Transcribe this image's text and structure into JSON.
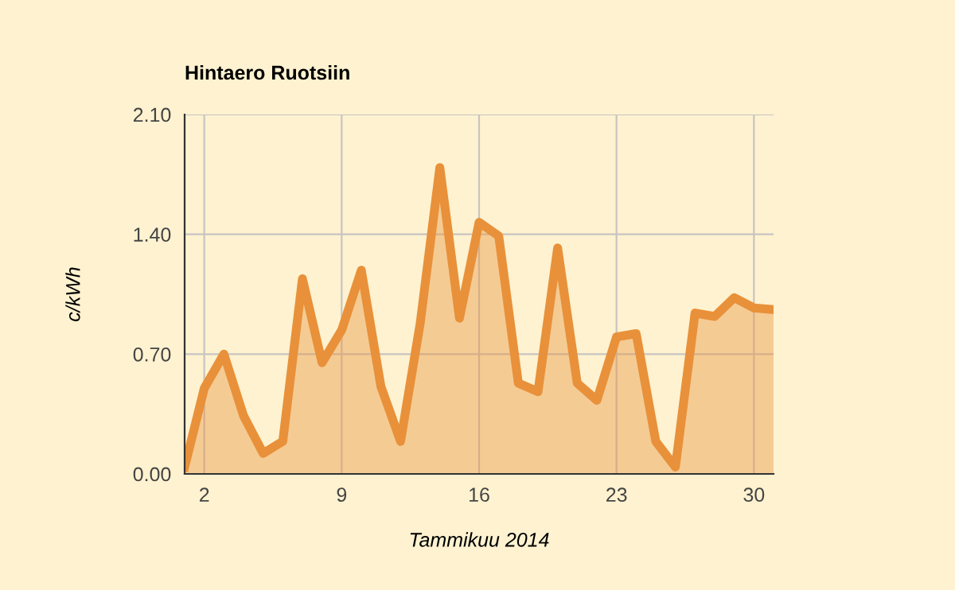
{
  "chart_data": {
    "type": "area",
    "title": "Hintaero Ruotsiin",
    "xlabel": "Tammikuu 2014",
    "ylabel": "c/kWh",
    "x": [
      1,
      2,
      3,
      4,
      5,
      6,
      7,
      8,
      9,
      10,
      11,
      12,
      13,
      14,
      15,
      16,
      17,
      18,
      19,
      20,
      21,
      22,
      23,
      24,
      25,
      26,
      27,
      28,
      29,
      30,
      31
    ],
    "series": [
      {
        "color": "#e8913a",
        "values": [
          0.04,
          0.5,
          0.7,
          0.34,
          0.12,
          0.19,
          1.14,
          0.65,
          0.84,
          1.19,
          0.51,
          0.19,
          0.88,
          1.79,
          0.91,
          1.47,
          1.39,
          0.53,
          0.48,
          1.32,
          0.53,
          0.43,
          0.8,
          0.82,
          0.19,
          0.04,
          0.94,
          0.92,
          1.03,
          0.97,
          0.96
        ]
      }
    ],
    "xlim": [
      1,
      31
    ],
    "xticks": [
      2,
      9,
      16,
      23,
      30
    ],
    "ylim": [
      0,
      2.1
    ],
    "yticks": [
      {
        "value": 0,
        "label": "0.00"
      },
      {
        "value": 0.7,
        "label": "0.70"
      },
      {
        "value": 1.4,
        "label": "1.40"
      },
      {
        "value": 2.1,
        "label": "2.10"
      }
    ],
    "grid": true,
    "legend": false
  }
}
